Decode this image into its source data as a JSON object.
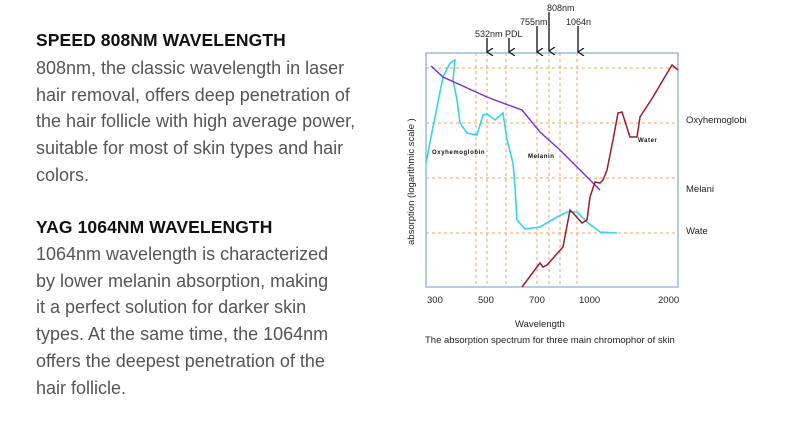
{
  "sections": [
    {
      "heading": "SPEED 808NM WAVELENGTH",
      "lines": [
        "808nm, the classic wavelength in laser",
        "hair removal, offers deep penetration of",
        "the hair follicle with high average power,",
        "suitable for most of skin types and hair",
        "colors."
      ]
    },
    {
      "heading": "YAG 1064NM WAVELENGTH",
      "lines": [
        "1064nm wavelength is characterized",
        "by lower melanin absorption, making",
        "it a perfect solution for darker skin",
        "types. At the same time, the 1064nm",
        "offers the deepest penetration of the",
        "hair follicle."
      ]
    }
  ],
  "figure": {
    "ylabel": "absorption (logarithmic scale )",
    "xlabel": "Wavelength",
    "caption": "The absorption spectrum for three main chromophor of skin",
    "x_ticks": [
      "300",
      "500",
      "700",
      "1000",
      "2000"
    ],
    "markers": {
      "m532": "532nm",
      "pdl": "PDL",
      "m755": "755nm",
      "m808": "808nm",
      "m1064": "1064n"
    },
    "curve_labels": {
      "oxy": "Oxyhemoglobin",
      "melanin": "Melanin",
      "water": "Water"
    },
    "right_labels": [
      "Oxyhemoglobi",
      "Melani",
      "Wate"
    ],
    "colors": {
      "oxyhemoglobin": "#33d6e8",
      "melanin": "#7b2be0",
      "water": "#9b1c2a",
      "guides": "#f5a050",
      "frame": "#8fb0d8"
    }
  }
}
